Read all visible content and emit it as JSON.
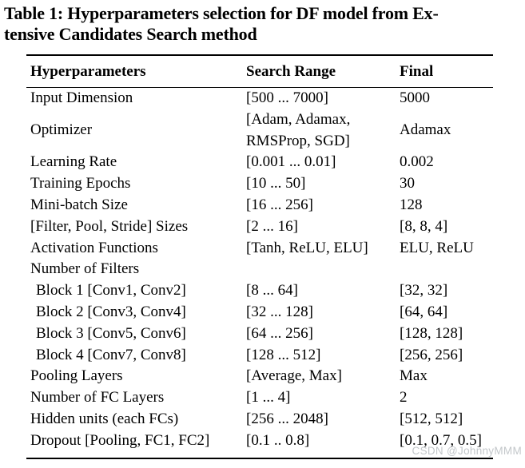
{
  "caption": {
    "line1": "Table 1: Hyperparameters selection for DF model from Ex-",
    "line2": "tensive Candidates Search method"
  },
  "table": {
    "columns": [
      "Hyperparameters",
      "Search Range",
      "Final"
    ],
    "rows": [
      {
        "name": "Input Dimension",
        "range": "[500 ... 7000]",
        "final": "5000"
      },
      {
        "name": "Optimizer",
        "range": "[Adam, Adamax,\nRMSProp, SGD]",
        "final": "Adamax"
      },
      {
        "name": "Learning Rate",
        "range": "[0.001 ... 0.01]",
        "final": "0.002"
      },
      {
        "name": "Training Epochs",
        "range": "[10 ... 50]",
        "final": "30"
      },
      {
        "name": "Mini-batch Size",
        "range": "[16 ... 256]",
        "final": "128"
      },
      {
        "name": "[Filter, Pool, Stride] Sizes",
        "range": "[2 ... 16]",
        "final": "[8, 8, 4]"
      },
      {
        "name": "Activation Functions",
        "range": "[Tanh, ReLU, ELU]",
        "final": "ELU, ReLU"
      },
      {
        "name": "Number of Filters",
        "range": "",
        "final": ""
      },
      {
        "name": "Block 1 [Conv1, Conv2]",
        "range": "[8 ... 64]",
        "final": "[32, 32]",
        "indent": true
      },
      {
        "name": "Block 2 [Conv3, Conv4]",
        "range": "[32 ... 128]",
        "final": "[64, 64]",
        "indent": true
      },
      {
        "name": "Block 3 [Conv5, Conv6]",
        "range": "[64 ... 256]",
        "final": "[128, 128]",
        "indent": true
      },
      {
        "name": "Block 4 [Conv7, Conv8]",
        "range": "[128 ... 512]",
        "final": "[256, 256]",
        "indent": true
      },
      {
        "name": "Pooling Layers",
        "range": "[Average, Max]",
        "final": "Max"
      },
      {
        "name": "Number of FC Layers",
        "range": "[1 ... 4]",
        "final": "2"
      },
      {
        "name": "Hidden units (each FCs)",
        "range": "[256 ... 2048]",
        "final": "[512, 512]"
      },
      {
        "name": "Dropout [Pooling, FC1, FC2]",
        "range": "[0.1 .. 0.8]",
        "final": "[0.1, 0.7, 0.5]"
      }
    ]
  },
  "watermark": "CSDN @JohnnyMMM",
  "colors": {
    "text": "#000000",
    "rule": "#000000",
    "watermark": "#c3c7ca"
  }
}
